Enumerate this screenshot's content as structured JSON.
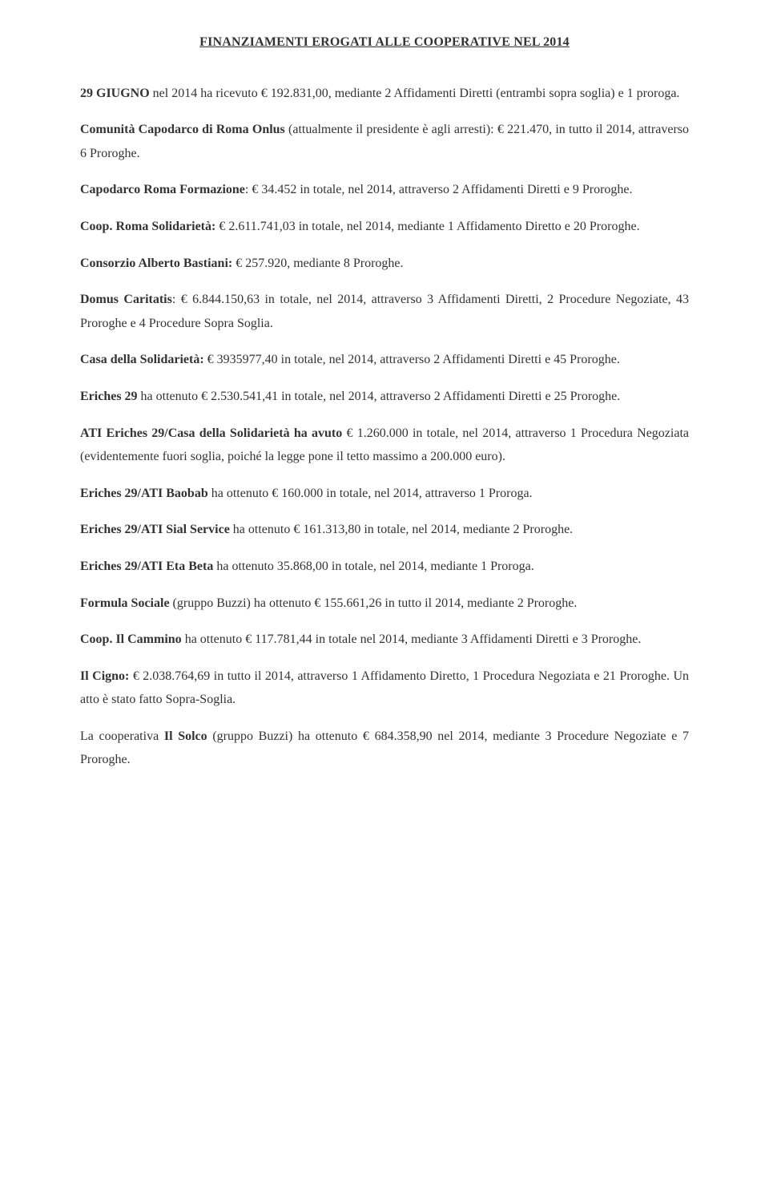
{
  "title": "FINANZIAMENTI EROGATI ALLE COOPERATIVE NEL 2014",
  "paragraphs": [
    [
      {
        "bold": true,
        "text": "29 GIUGNO"
      },
      {
        "bold": false,
        "text": " nel 2014 ha ricevuto € 192.831,00, mediante 2 Affidamenti Diretti (entrambi sopra soglia) e 1 proroga."
      }
    ],
    [
      {
        "bold": true,
        "text": "Comunità Capodarco di Roma Onlus"
      },
      {
        "bold": false,
        "text": " (attualmente il presidente è agli arresti): € 221.470, in tutto il 2014, attraverso 6 Proroghe."
      }
    ],
    [
      {
        "bold": true,
        "text": "Capodarco Roma Formazione"
      },
      {
        "bold": false,
        "text": ": € 34.452 in totale, nel 2014, attraverso 2 Affidamenti Diretti e 9 Proroghe."
      }
    ],
    [
      {
        "bold": true,
        "text": "Coop. Roma Solidarietà:"
      },
      {
        "bold": false,
        "text": " € 2.611.741,03 in totale, nel 2014, mediante 1 Affidamento Diretto e 20 Proroghe."
      }
    ],
    [
      {
        "bold": true,
        "text": "Consorzio Alberto Bastiani:"
      },
      {
        "bold": false,
        "text": " € 257.920, mediante 8 Proroghe."
      }
    ],
    [
      {
        "bold": true,
        "text": "Domus Caritatis"
      },
      {
        "bold": false,
        "text": ": € 6.844.150,63 in totale, nel 2014, attraverso 3 Affidamenti Diretti, 2 Procedure Negoziate, 43 Proroghe e 4 Procedure Sopra Soglia."
      }
    ],
    [
      {
        "bold": true,
        "text": "Casa della Solidarietà:"
      },
      {
        "bold": false,
        "text": " € 3935977,40 in totale, nel 2014, attraverso 2 Affidamenti Diretti e 45 Proroghe."
      }
    ],
    [
      {
        "bold": true,
        "text": "Eriches 29"
      },
      {
        "bold": false,
        "text": " ha ottenuto € 2.530.541,41 in totale, nel 2014, attraverso 2 Affidamenti Diretti e 25 Proroghe."
      }
    ],
    [
      {
        "bold": true,
        "text": "ATI Eriches 29/Casa della Solidarietà ha avuto"
      },
      {
        "bold": false,
        "text": " € 1.260.000 in totale, nel 2014, attraverso 1 Procedura Negoziata (evidentemente fuori soglia, poiché la legge pone il tetto massimo a 200.000 euro)."
      }
    ],
    [
      {
        "bold": true,
        "text": "Eriches 29/ATI Baobab"
      },
      {
        "bold": false,
        "text": " ha ottenuto € 160.000 in totale, nel 2014, attraverso 1 Proroga."
      }
    ],
    [
      {
        "bold": true,
        "text": "Eriches 29/ATI Sial Service"
      },
      {
        "bold": false,
        "text": " ha ottenuto € 161.313,80 in totale, nel 2014, mediante 2 Proroghe."
      }
    ],
    [
      {
        "bold": true,
        "text": "Eriches 29/ATI Eta Beta"
      },
      {
        "bold": false,
        "text": " ha ottenuto 35.868,00 in totale, nel 2014, mediante 1 Proroga."
      }
    ],
    [
      {
        "bold": true,
        "text": "Formula Sociale"
      },
      {
        "bold": false,
        "text": " (gruppo Buzzi) ha ottenuto € 155.661,26 in tutto il 2014, mediante 2 Proroghe."
      }
    ],
    [
      {
        "bold": true,
        "text": "Coop. Il Cammino"
      },
      {
        "bold": false,
        "text": " ha ottenuto € 117.781,44 in totale nel 2014, mediante 3 Affidamenti Diretti e 3 Proroghe."
      }
    ],
    [
      {
        "bold": true,
        "text": "Il Cigno:"
      },
      {
        "bold": false,
        "text": " € 2.038.764,69 in tutto il 2014, attraverso 1 Affidamento Diretto, 1 Procedura Negoziata e 21 Proroghe. Un atto è stato fatto Sopra-Soglia."
      }
    ],
    [
      {
        "bold": false,
        "text": "La cooperativa "
      },
      {
        "bold": true,
        "text": "Il Solco"
      },
      {
        "bold": false,
        "text": " (gruppo Buzzi) ha ottenuto € 684.358,90 nel 2014, mediante 3 Procedure Negoziate e 7 Proroghe."
      }
    ]
  ]
}
